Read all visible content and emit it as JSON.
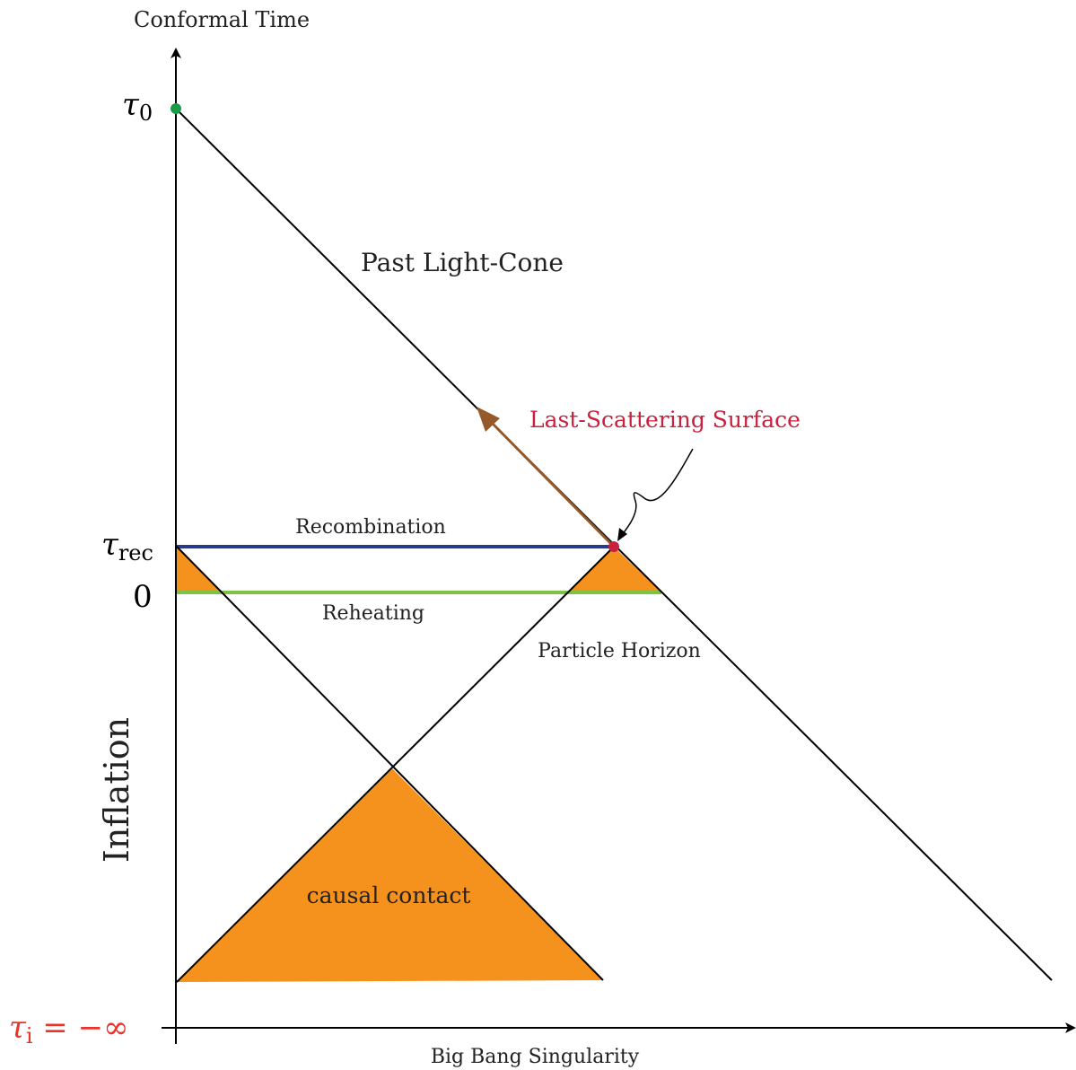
{
  "axes": {
    "y_axis_label": "Conformal Time",
    "x_axis_label": "Big Bang Singularity"
  },
  "ticks": {
    "tau0": {
      "symbol": "τ",
      "subscript": "0"
    },
    "tau_rec": {
      "symbol": "τ",
      "subscript": "rec"
    },
    "zero": "0",
    "tau_i": {
      "symbol": "τ",
      "subscript": "i",
      "rest": " = −∞",
      "color": "#e8342a"
    }
  },
  "labels": {
    "past_light_cone": "Past Light-Cone",
    "last_scattering": "Last-Scattering Surface",
    "recombination": "Recombination",
    "reheating": "Reheating",
    "particle_horizon": "Particle Horizon",
    "inflation": "Inflation",
    "causal_contact": "causal contact"
  },
  "colors": {
    "orange_fill": "#f5921e",
    "recombination_line": "#263b8c",
    "reheating_line": "#7dc242",
    "last_scattering_text": "#c8203e",
    "last_scattering_point": "#c8203e",
    "observer_point": "#1b9a4a",
    "photon_arrow": "#96592a",
    "tau_i_text": "#e8342a"
  }
}
